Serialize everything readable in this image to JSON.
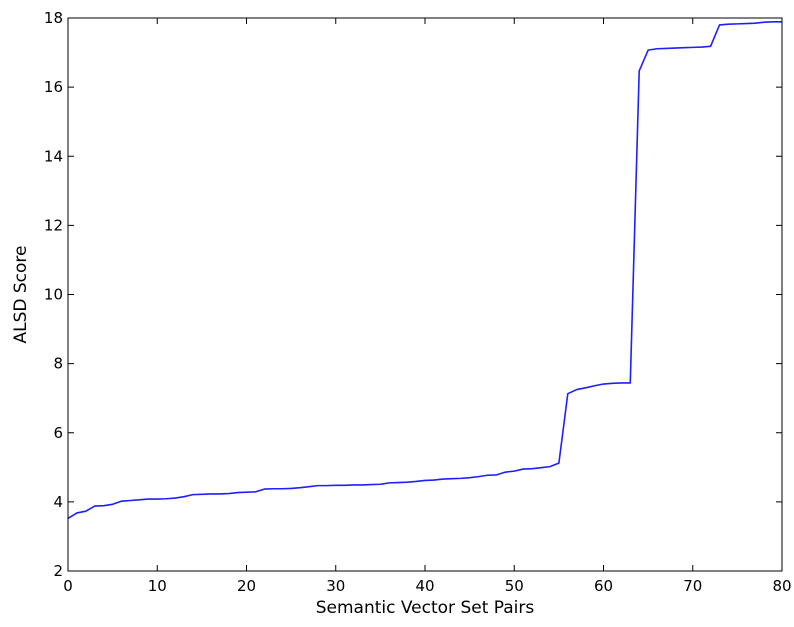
{
  "chart_data": {
    "type": "line",
    "title": "",
    "xlabel": "Semantic Vector Set Pairs",
    "ylabel": "ALSD Score",
    "xlim": [
      0,
      80
    ],
    "ylim": [
      2,
      18
    ],
    "xticks": [
      0,
      10,
      20,
      30,
      40,
      50,
      60,
      70,
      80
    ],
    "yticks": [
      2,
      4,
      6,
      8,
      10,
      12,
      14,
      16,
      18
    ],
    "grid": false,
    "series": [
      {
        "color": "#1f1fff",
        "x": [
          0,
          1,
          2,
          3,
          4,
          5,
          6,
          7,
          8,
          9,
          10,
          11,
          12,
          13,
          14,
          15,
          16,
          17,
          18,
          19,
          20,
          21,
          22,
          23,
          24,
          25,
          26,
          27,
          28,
          29,
          30,
          31,
          32,
          33,
          34,
          35,
          36,
          37,
          38,
          39,
          40,
          41,
          42,
          43,
          44,
          45,
          46,
          47,
          48,
          49,
          50,
          51,
          52,
          53,
          54,
          55,
          56,
          57,
          58,
          59,
          60,
          61,
          62,
          63,
          64,
          65,
          66,
          67,
          68,
          69,
          70,
          71,
          72,
          73,
          74,
          75,
          76,
          77,
          78,
          79,
          80
        ],
        "y": [
          3.52,
          3.68,
          3.73,
          3.88,
          3.89,
          3.93,
          4.02,
          4.04,
          4.06,
          4.08,
          4.08,
          4.09,
          4.11,
          4.15,
          4.21,
          4.22,
          4.23,
          4.23,
          4.24,
          4.27,
          4.28,
          4.29,
          4.37,
          4.38,
          4.38,
          4.39,
          4.41,
          4.44,
          4.47,
          4.47,
          4.48,
          4.48,
          4.49,
          4.49,
          4.5,
          4.51,
          4.55,
          4.56,
          4.57,
          4.59,
          4.62,
          4.63,
          4.66,
          4.67,
          4.68,
          4.7,
          4.73,
          4.77,
          4.78,
          4.86,
          4.89,
          4.95,
          4.96,
          4.99,
          5.02,
          5.12,
          7.13,
          7.25,
          7.3,
          7.36,
          7.41,
          7.43,
          7.44,
          7.44,
          16.47,
          17.07,
          17.11,
          17.12,
          17.13,
          17.14,
          17.15,
          17.16,
          17.18,
          17.8,
          17.82,
          17.83,
          17.84,
          17.85,
          17.88,
          17.89,
          17.89
        ]
      }
    ]
  }
}
